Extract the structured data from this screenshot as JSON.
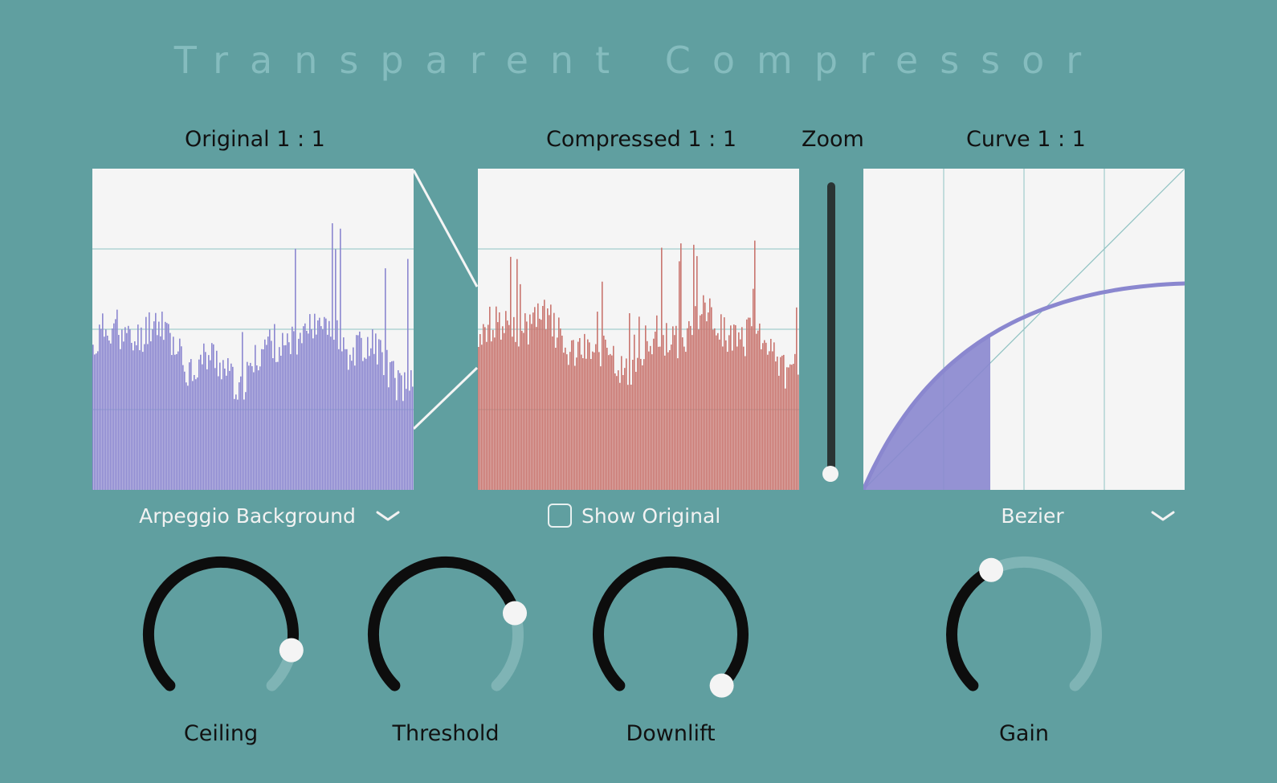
{
  "title": "Transparent Compressor",
  "panels": {
    "original": {
      "label": "Original 1 : 1"
    },
    "compressed": {
      "label": "Compressed 1 : 1"
    },
    "zoom": {
      "label": "Zoom",
      "level": 0.0
    },
    "curve": {
      "label": "Curve 1 : 1"
    }
  },
  "source_select": {
    "value": "Arpeggio Background"
  },
  "show_original": {
    "label": "Show Original",
    "checked": false
  },
  "curve_select": {
    "value": "Bezier"
  },
  "knobs": [
    {
      "name": "ceiling",
      "label": "Ceiling",
      "value": 0.88
    },
    {
      "name": "threshold",
      "label": "Threshold",
      "value": 0.77
    },
    {
      "name": "downlift",
      "label": "Downlift",
      "value": 1.0
    },
    {
      "name": "gain",
      "label": "Gain",
      "value": 0.4
    }
  ],
  "colors": {
    "background": "#609fa0",
    "title": "#85bcbe",
    "original_bars": "#8b87d0",
    "compressed_bars": "#c9756f",
    "curve": "#8a87cf",
    "grid": "#8fc2c2",
    "knob_arc": "#0d0d0d",
    "knob_track": "#7fb4b5"
  },
  "icons": {
    "dropdown": "chevron-down-icon"
  }
}
